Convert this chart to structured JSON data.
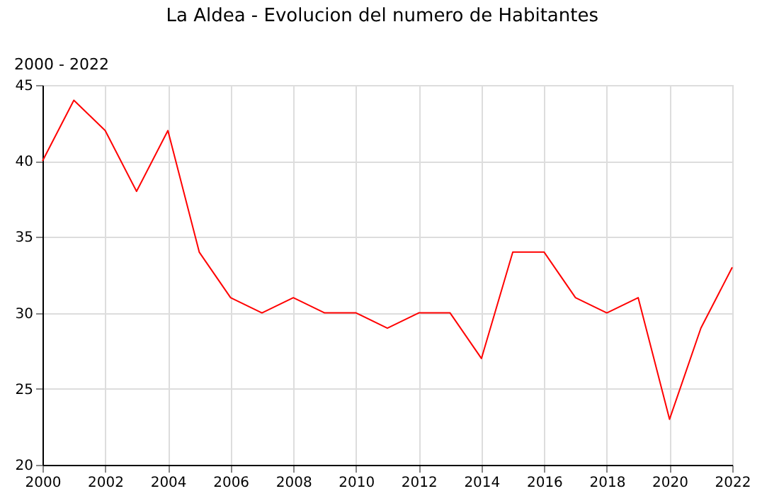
{
  "chart_data": {
    "type": "line",
    "title": "La Aldea - Evolucion del numero de Habitantes",
    "annotations": [
      "2000 - 2022"
    ],
    "x": [
      2000,
      2001,
      2002,
      2003,
      2004,
      2005,
      2006,
      2007,
      2008,
      2009,
      2010,
      2011,
      2012,
      2013,
      2014,
      2015,
      2016,
      2017,
      2018,
      2019,
      2020,
      2021,
      2022
    ],
    "series": [
      {
        "color": "#ff0000",
        "values": [
          40,
          44,
          42,
          38,
          42,
          34,
          31,
          30,
          31,
          30,
          30,
          29,
          30,
          30,
          27,
          34,
          34,
          31,
          30,
          31,
          23,
          29,
          33
        ]
      }
    ],
    "xlim": [
      2000,
      2022
    ],
    "xticks": [
      2000,
      2002,
      2004,
      2006,
      2008,
      2010,
      2012,
      2014,
      2016,
      2018,
      2020,
      2022
    ],
    "ylim": [
      20,
      45
    ],
    "yticks": [
      20,
      25,
      30,
      35,
      40,
      45
    ],
    "grid": true,
    "marker": "none",
    "line_style": "solid"
  }
}
